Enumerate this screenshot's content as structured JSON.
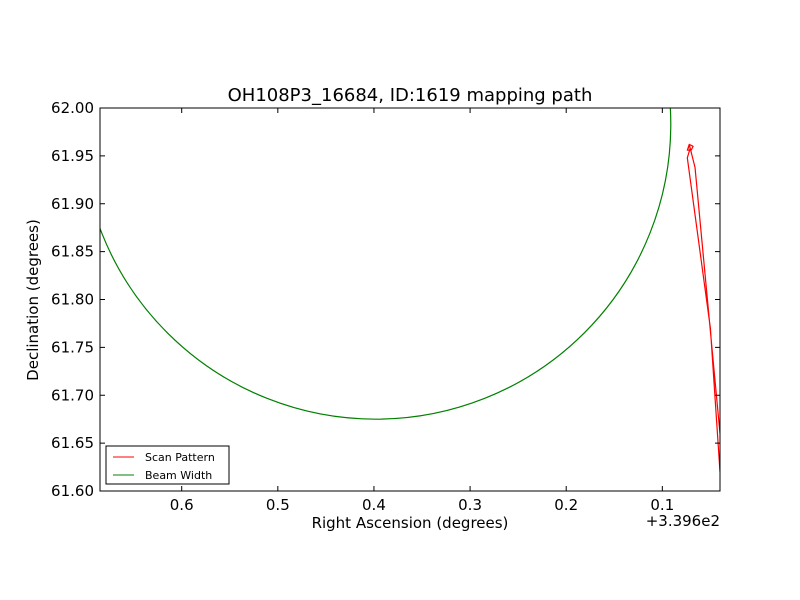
{
  "chart_data": {
    "type": "line",
    "title": "OH108P3_16684, ID:1619 mapping path",
    "xlabel": "Right Ascension (degrees)",
    "ylabel": "Declination (degrees)",
    "x_offset_label": "+3.396e2",
    "xlim": [
      0.685,
      0.04
    ],
    "ylim": [
      61.6,
      62.0
    ],
    "x_inverted": true,
    "xticks": [
      0.6,
      0.5,
      0.4,
      0.3,
      0.2,
      0.1
    ],
    "xtick_labels": [
      "0.6",
      "0.5",
      "0.4",
      "0.3",
      "0.2",
      "0.1"
    ],
    "yticks": [
      61.6,
      61.65,
      61.7,
      61.75,
      61.8,
      61.85,
      61.9,
      61.95,
      62.0
    ],
    "ytick_labels": [
      "61.60",
      "61.65",
      "61.70",
      "61.75",
      "61.80",
      "61.85",
      "61.90",
      "61.95",
      "62.00"
    ],
    "legend_position": "lower-left",
    "series": [
      {
        "name": "Scan Pattern",
        "color": "#ff0000",
        "x": [
          0.04,
          0.05,
          0.074,
          0.071,
          0.072,
          0.073,
          0.072,
          0.074,
          0.07,
          0.068,
          0.072,
          0.066,
          0.04
        ],
        "y": [
          61.62,
          61.77,
          61.948,
          61.958,
          61.962,
          61.958,
          61.962,
          61.956,
          61.956,
          61.96,
          61.962,
          61.938,
          61.66
        ]
      },
      {
        "name": "Beam Width",
        "color": "#008000",
        "circle": {
          "center_x": 0.398,
          "center_y": 61.983,
          "radius_y": 0.308
        }
      }
    ]
  }
}
